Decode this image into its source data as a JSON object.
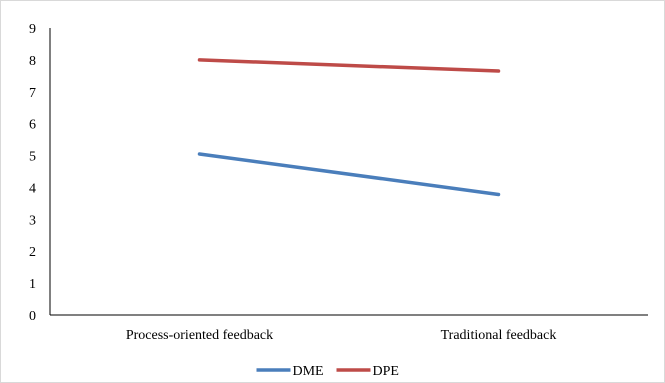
{
  "chart_data": {
    "type": "line",
    "categories": [
      "Process-oriented feedback",
      "Traditional feedback"
    ],
    "series": [
      {
        "name": "DME",
        "values": [
          5.05,
          3.78
        ],
        "color": "#4a7ebb"
      },
      {
        "name": "DPE",
        "values": [
          8.0,
          7.65
        ],
        "color": "#be4b48"
      }
    ],
    "yticks": [
      "0",
      "1",
      "2",
      "3",
      "4",
      "5",
      "6",
      "7",
      "8",
      "9"
    ],
    "ylim": [
      0,
      9
    ],
    "grid": false,
    "legend_position": "bottom",
    "title": "",
    "xlabel": "",
    "ylabel": ""
  }
}
